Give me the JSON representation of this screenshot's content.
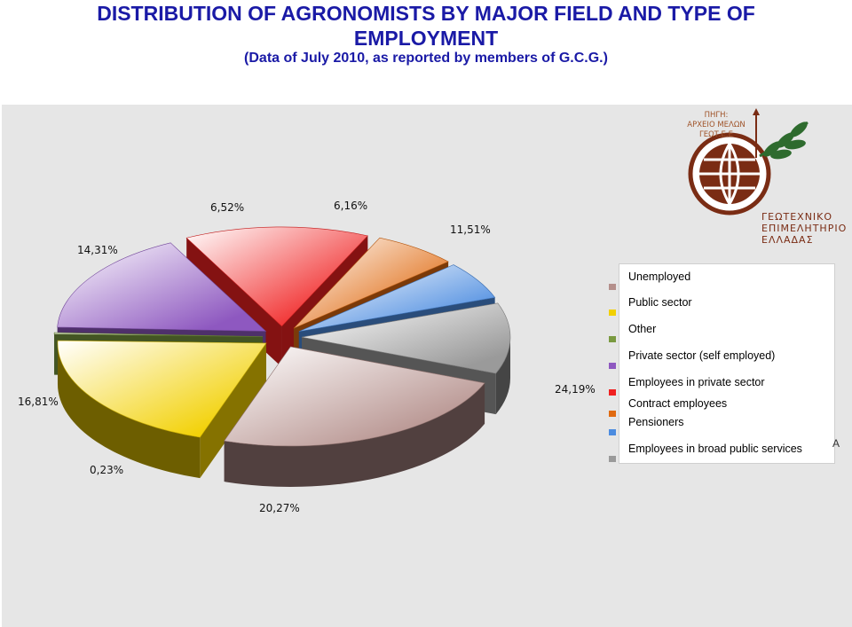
{
  "header": {
    "title_line1": "DISTRIBUTION OF AGRONOMISTS BY MAJOR FIELD AND TYPE OF",
    "title_line2": "EMPLOYMENT",
    "subtitle": "(Data of July 2010, as reported by members of G.C.G.)"
  },
  "logo": {
    "source_line1": "ΠΗΓΗ:",
    "source_line2": "ΑΡΧΕΙΟ ΜΕΛΩΝ",
    "source_line3": "ΓΕΩΤ.Ε.Ε",
    "name_line1": "ΓΕΩΤΕΧΝΙΚΟ",
    "name_line2": "ΕΠΙΜΕΛΗΤΗΡΙΟ",
    "name_line3": "ΕΛΛΑΔΑΣ",
    "circle_text": "ΓΕΩΤ.Ε.Ε."
  },
  "trailing_mark": "Α",
  "chart_data": {
    "type": "pie",
    "title": "DISTRIBUTION OF AGRONOMISTS BY MAJOR FIELD AND TYPE OF EMPLOYMENT",
    "subtitle": "(Data of July 2010, as reported by members of G.C.G.)",
    "unit": "%",
    "legend_position": "right",
    "slices": [
      {
        "label": "Employees in broad public services",
        "value": 11.51,
        "value_label": "11,51%",
        "color": "#9a9a9a"
      },
      {
        "label": "Unemployed",
        "value": 24.19,
        "value_label": "24,19%",
        "color": "#b48f8b"
      },
      {
        "label": "Public sector",
        "value": 20.27,
        "value_label": "20,27%",
        "color": "#f2d000"
      },
      {
        "label": "Other",
        "value": 0.23,
        "value_label": "0,23%",
        "color": "#7a9a40"
      },
      {
        "label": "Private sector (self employed)",
        "value": 16.81,
        "value_label": "16,81%",
        "color": "#8e58c0"
      },
      {
        "label": "Employees in private sector",
        "value": 14.31,
        "value_label": "14,31%",
        "color": "#f02020"
      },
      {
        "label": "Contract employees",
        "value": 6.52,
        "value_label": "6,52%",
        "color": "#e06a10"
      },
      {
        "label": "Pensioners",
        "value": 6.16,
        "value_label": "6,16%",
        "color": "#4c8ce0"
      }
    ],
    "legend_order": [
      "Unemployed",
      "Public sector",
      "Other",
      "Private sector (self employed)",
      "Employees in private sector",
      "Contract employees",
      "Pensioners",
      "Employees in broad public services"
    ]
  }
}
